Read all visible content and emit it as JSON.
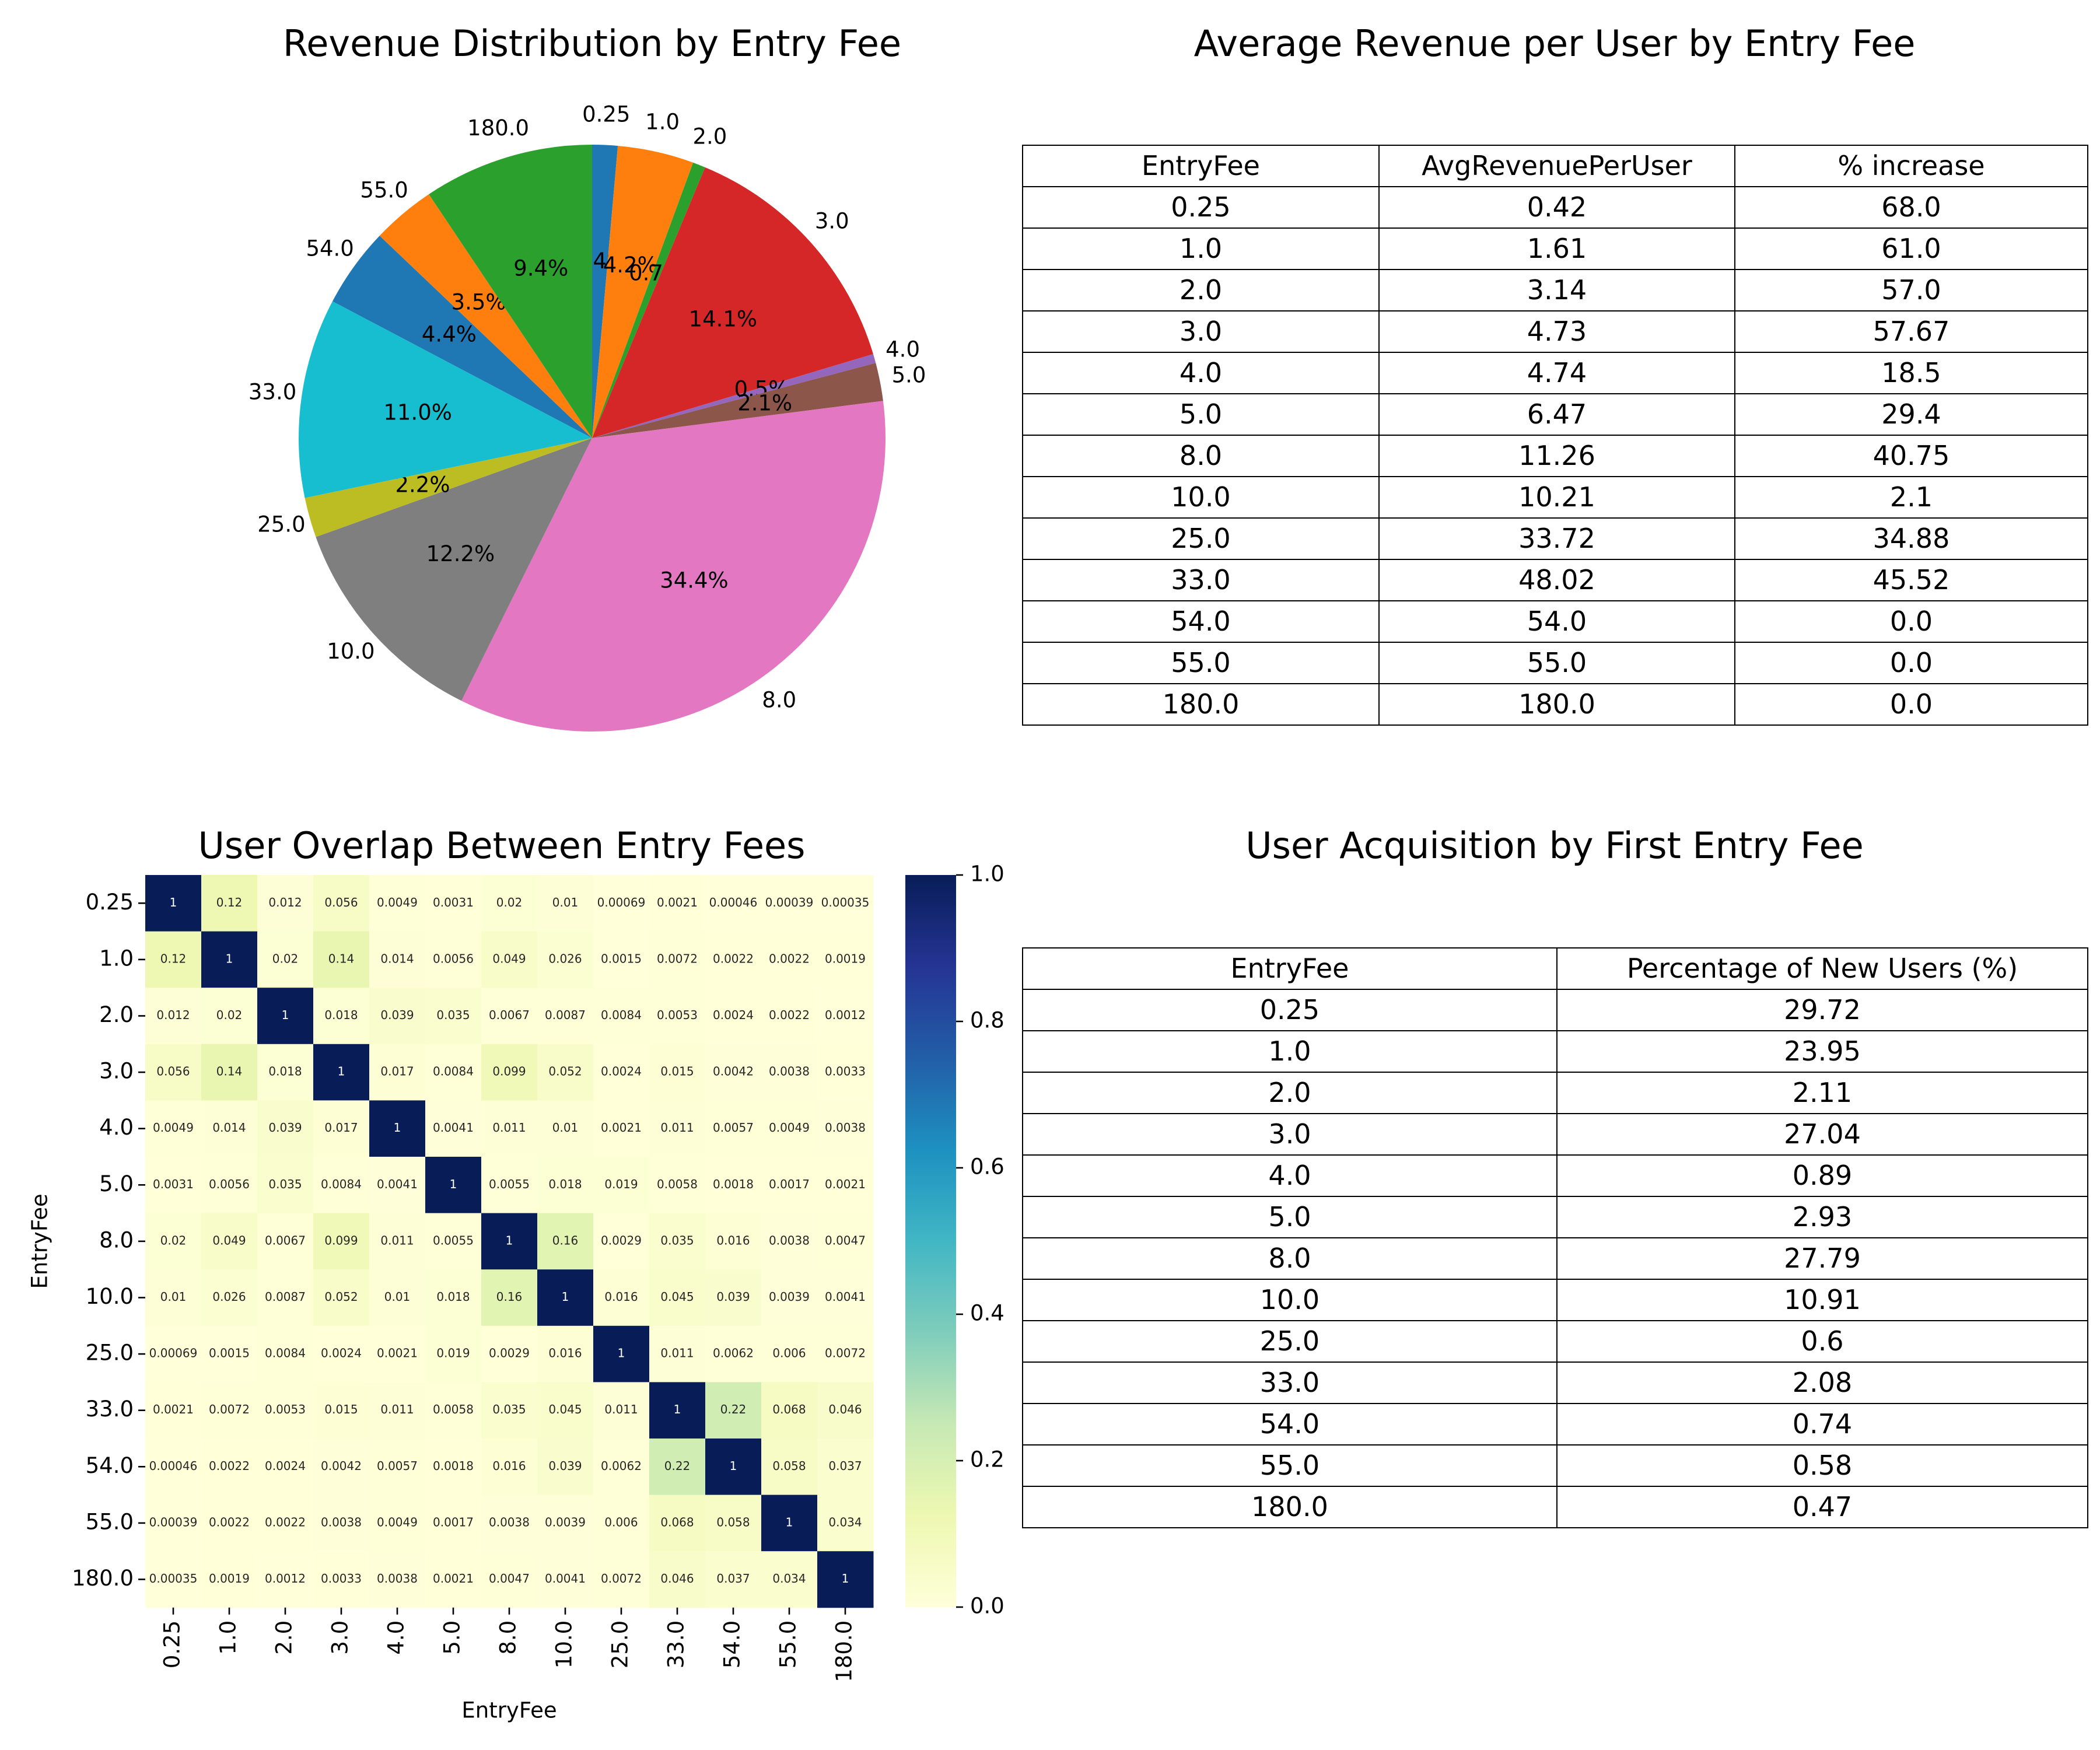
{
  "chart_data": [
    {
      "type": "pie",
      "title": "Revenue Distribution by Entry Fee",
      "labels": [
        "0.25",
        "1.0",
        "2.0",
        "3.0",
        "4.0",
        "5.0",
        "8.0",
        "10.0",
        "25.0",
        "33.0",
        "54.0",
        "55.0",
        "180.0"
      ],
      "values": [
        1.4,
        4.2,
        0.7,
        14.1,
        0.5,
        2.1,
        34.4,
        12.2,
        2.2,
        11.0,
        4.4,
        3.5,
        9.4
      ],
      "pct_labels": [
        "1.4%",
        "4.2%",
        "0.7%",
        "14.1%",
        "0.5%",
        "2.1%",
        "34.4%",
        "12.2%",
        "2.2%",
        "11.0%",
        "4.4%",
        "3.5%",
        "9.4%"
      ],
      "colors": [
        "#1f77b4",
        "#ff7f0e",
        "#2ca02c",
        "#d62728",
        "#9467bd",
        "#8c564b",
        "#e377c2",
        "#7f7f7f",
        "#bcbd22",
        "#17becf",
        "#1f77b4",
        "#ff7f0e",
        "#2ca02c"
      ],
      "start_angle_deg": 90,
      "direction": "clockwise"
    },
    {
      "type": "table",
      "title": "Average Revenue per User by Entry Fee",
      "columns": [
        "EntryFee",
        "AvgRevenuePerUser",
        "% increase"
      ],
      "rows": [
        [
          "0.25",
          "0.42",
          "68.0"
        ],
        [
          "1.0",
          "1.61",
          "61.0"
        ],
        [
          "2.0",
          "3.14",
          "57.0"
        ],
        [
          "3.0",
          "4.73",
          "57.67"
        ],
        [
          "4.0",
          "4.74",
          "18.5"
        ],
        [
          "5.0",
          "6.47",
          "29.4"
        ],
        [
          "8.0",
          "11.26",
          "40.75"
        ],
        [
          "10.0",
          "10.21",
          "2.1"
        ],
        [
          "25.0",
          "33.72",
          "34.88"
        ],
        [
          "33.0",
          "48.02",
          "45.52"
        ],
        [
          "54.0",
          "54.0",
          "0.0"
        ],
        [
          "55.0",
          "55.0",
          "0.0"
        ],
        [
          "180.0",
          "180.0",
          "0.0"
        ]
      ]
    },
    {
      "type": "heatmap",
      "title": "User Overlap Between Entry Fees",
      "xlabel": "EntryFee",
      "ylabel": "EntryFee",
      "categories": [
        "0.25",
        "1.0",
        "2.0",
        "3.0",
        "4.0",
        "5.0",
        "8.0",
        "10.0",
        "25.0",
        "33.0",
        "54.0",
        "55.0",
        "180.0"
      ],
      "values": [
        [
          "1",
          "0.12",
          "0.012",
          "0.056",
          "0.0049",
          "0.0031",
          "0.02",
          "0.01",
          "0.00069",
          "0.0021",
          "0.00046",
          "0.00039",
          "0.00035"
        ],
        [
          "0.12",
          "1",
          "0.02",
          "0.14",
          "0.014",
          "0.0056",
          "0.049",
          "0.026",
          "0.0015",
          "0.0072",
          "0.0022",
          "0.0022",
          "0.0019"
        ],
        [
          "0.012",
          "0.02",
          "1",
          "0.018",
          "0.039",
          "0.035",
          "0.0067",
          "0.0087",
          "0.0084",
          "0.0053",
          "0.0024",
          "0.0022",
          "0.0012"
        ],
        [
          "0.056",
          "0.14",
          "0.018",
          "1",
          "0.017",
          "0.0084",
          "0.099",
          "0.052",
          "0.0024",
          "0.015",
          "0.0042",
          "0.0038",
          "0.0033"
        ],
        [
          "0.0049",
          "0.014",
          "0.039",
          "0.017",
          "1",
          "0.0041",
          "0.011",
          "0.01",
          "0.0021",
          "0.011",
          "0.0057",
          "0.0049",
          "0.0038"
        ],
        [
          "0.0031",
          "0.0056",
          "0.035",
          "0.0084",
          "0.0041",
          "1",
          "0.0055",
          "0.018",
          "0.019",
          "0.0058",
          "0.0018",
          "0.0017",
          "0.0021"
        ],
        [
          "0.02",
          "0.049",
          "0.0067",
          "0.099",
          "0.011",
          "0.0055",
          "1",
          "0.16",
          "0.0029",
          "0.035",
          "0.016",
          "0.0038",
          "0.0047"
        ],
        [
          "0.01",
          "0.026",
          "0.0087",
          "0.052",
          "0.01",
          "0.018",
          "0.16",
          "1",
          "0.016",
          "0.045",
          "0.039",
          "0.0039",
          "0.0041"
        ],
        [
          "0.00069",
          "0.0015",
          "0.0084",
          "0.0024",
          "0.0021",
          "0.019",
          "0.0029",
          "0.016",
          "1",
          "0.011",
          "0.0062",
          "0.006",
          "0.0072"
        ],
        [
          "0.0021",
          "0.0072",
          "0.0053",
          "0.015",
          "0.011",
          "0.0058",
          "0.035",
          "0.045",
          "0.011",
          "1",
          "0.22",
          "0.068",
          "0.046"
        ],
        [
          "0.00046",
          "0.0022",
          "0.0024",
          "0.0042",
          "0.0057",
          "0.0018",
          "0.016",
          "0.039",
          "0.0062",
          "0.22",
          "1",
          "0.058",
          "0.037"
        ],
        [
          "0.00039",
          "0.0022",
          "0.0022",
          "0.0038",
          "0.0049",
          "0.0017",
          "0.0038",
          "0.0039",
          "0.006",
          "0.068",
          "0.058",
          "1",
          "0.034"
        ],
        [
          "0.00035",
          "0.0019",
          "0.0012",
          "0.0033",
          "0.0038",
          "0.0021",
          "0.0047",
          "0.0041",
          "0.0072",
          "0.046",
          "0.037",
          "0.034",
          "1"
        ]
      ],
      "colormap": "YlGnBu",
      "vmin": 0,
      "vmax": 1,
      "colorbar_ticks": [
        "0.0",
        "0.2",
        "0.4",
        "0.6",
        "0.8",
        "1.0"
      ]
    },
    {
      "type": "table",
      "title": "User Acquisition by First Entry Fee",
      "columns": [
        "EntryFee",
        "Percentage of New Users (%)"
      ],
      "rows": [
        [
          "0.25",
          "29.72"
        ],
        [
          "1.0",
          "23.95"
        ],
        [
          "2.0",
          "2.11"
        ],
        [
          "3.0",
          "27.04"
        ],
        [
          "4.0",
          "0.89"
        ],
        [
          "5.0",
          "2.93"
        ],
        [
          "8.0",
          "27.79"
        ],
        [
          "10.0",
          "10.91"
        ],
        [
          "25.0",
          "0.6"
        ],
        [
          "33.0",
          "2.08"
        ],
        [
          "54.0",
          "0.74"
        ],
        [
          "55.0",
          "0.58"
        ],
        [
          "180.0",
          "0.47"
        ]
      ]
    }
  ]
}
